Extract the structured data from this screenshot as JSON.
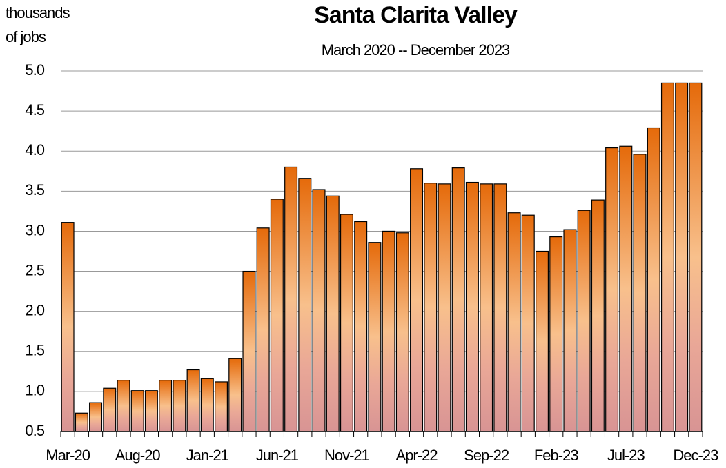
{
  "chart_data": {
    "type": "bar",
    "title": "Santa Clarita Valley",
    "subtitle": "March 2020 -- December 2023",
    "y_label_lines": [
      "thousands",
      "of jobs"
    ],
    "categories": [
      "Mar-20",
      null,
      null,
      null,
      null,
      "Aug-20",
      null,
      null,
      null,
      null,
      "Jan-21",
      null,
      null,
      null,
      null,
      "Jun-21",
      null,
      null,
      null,
      null,
      "Nov-21",
      null,
      null,
      null,
      null,
      "Apr-22",
      null,
      null,
      null,
      null,
      "Sep-22",
      null,
      null,
      null,
      null,
      "Feb-23",
      null,
      null,
      null,
      null,
      "Jul-23",
      null,
      null,
      null,
      null,
      "Dec-23"
    ],
    "values": [
      3.11,
      0.73,
      0.86,
      1.04,
      1.14,
      1.01,
      1.01,
      1.14,
      1.14,
      1.27,
      1.16,
      1.12,
      1.41,
      2.5,
      3.04,
      3.4,
      3.8,
      3.66,
      3.52,
      3.44,
      3.21,
      3.12,
      2.86,
      3.0,
      2.98,
      3.78,
      3.6,
      3.59,
      3.79,
      3.61,
      3.59,
      3.59,
      3.23,
      3.2,
      2.75,
      2.93,
      3.02,
      3.26,
      3.39,
      4.04,
      4.06,
      3.96,
      4.29,
      4.85,
      4.85,
      4.85
    ],
    "color": "#e56a0a",
    "ylim": [
      0.5,
      5.0
    ],
    "yticks": [
      0.5,
      {
        "value": 1,
        "label": "1.0"
      },
      1.5,
      {
        "value": 2,
        "label": "2.0"
      },
      2.5,
      {
        "value": 3,
        "label": "3.0"
      },
      3.5,
      {
        "value": 4,
        "label": "4.0"
      },
      4.5,
      {
        "value": 5,
        "label": "5.0"
      }
    ],
    "grid": true
  }
}
